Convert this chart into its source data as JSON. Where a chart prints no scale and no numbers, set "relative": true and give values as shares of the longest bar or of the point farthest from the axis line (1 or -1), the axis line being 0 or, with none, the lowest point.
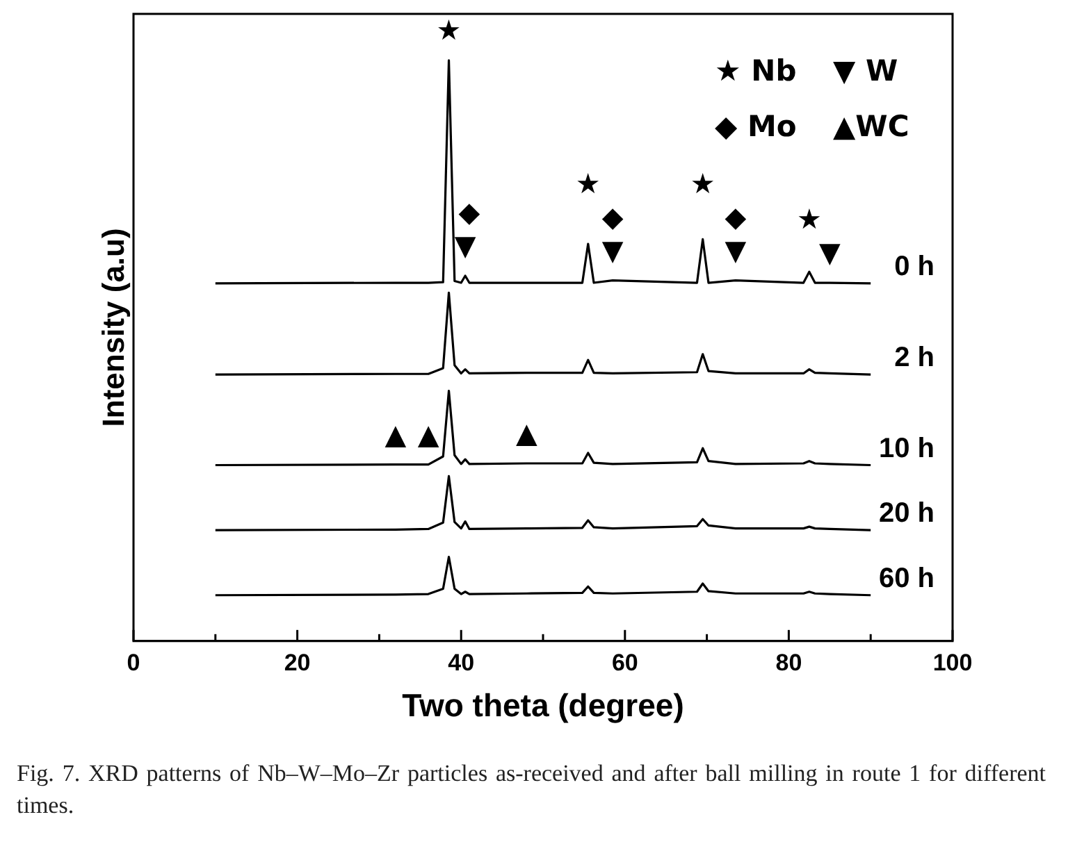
{
  "chart_data": {
    "type": "line",
    "relative": true,
    "xlabel": "Two theta (degree)",
    "ylabel": "Intensity (a.u)",
    "xlim": [
      0,
      100
    ],
    "xticks": [
      0,
      {
        "value": 10,
        "label": null
      },
      20,
      {
        "value": 30,
        "label": null
      },
      40,
      {
        "value": 50,
        "label": null
      },
      60,
      {
        "value": 70,
        "label": null
      },
      80,
      {
        "value": 90,
        "label": null
      },
      100
    ],
    "tick_labels": "x",
    "legend": false,
    "grid": false,
    "marker": "none",
    "line_style": "solid",
    "x": [
      10,
      32,
      36,
      37.8,
      38.5,
      39.2,
      40,
      40.5,
      41,
      48,
      54.8,
      55.5,
      56.2,
      58.5,
      68.8,
      69.5,
      70.2,
      73.5,
      81.8,
      82.5,
      83.2,
      85,
      90
    ],
    "series": [
      {
        "name": "0 h",
        "color": "#000000",
        "values": [
          0.616,
          0.617,
          0.617,
          0.618,
          1.0,
          0.62,
          0.617,
          0.629,
          0.617,
          0.617,
          0.617,
          0.684,
          0.617,
          0.621,
          0.617,
          0.692,
          0.617,
          0.621,
          0.617,
          0.636,
          0.617,
          0.617,
          0.616
        ]
      },
      {
        "name": "2 h",
        "color": "#000000",
        "values": [
          0.459,
          0.46,
          0.46,
          0.47,
          0.6,
          0.475,
          0.461,
          0.468,
          0.461,
          0.462,
          0.462,
          0.484,
          0.462,
          0.461,
          0.463,
          0.494,
          0.465,
          0.461,
          0.461,
          0.468,
          0.462,
          0.461,
          0.459
        ]
      },
      {
        "name": "10 h",
        "color": "#000000",
        "values": [
          0.303,
          0.304,
          0.304,
          0.318,
          0.431,
          0.32,
          0.305,
          0.313,
          0.305,
          0.306,
          0.306,
          0.324,
          0.307,
          0.305,
          0.308,
          0.332,
          0.31,
          0.305,
          0.306,
          0.31,
          0.306,
          0.305,
          0.303
        ]
      },
      {
        "name": "20 h",
        "color": "#000000",
        "values": [
          0.191,
          0.192,
          0.193,
          0.204,
          0.284,
          0.205,
          0.194,
          0.206,
          0.193,
          0.194,
          0.195,
          0.208,
          0.196,
          0.194,
          0.198,
          0.21,
          0.199,
          0.194,
          0.194,
          0.197,
          0.194,
          0.193,
          0.191
        ]
      },
      {
        "name": "60 h",
        "color": "#000000",
        "values": [
          0.079,
          0.08,
          0.081,
          0.09,
          0.145,
          0.09,
          0.081,
          0.085,
          0.081,
          0.082,
          0.083,
          0.094,
          0.083,
          0.082,
          0.085,
          0.099,
          0.086,
          0.082,
          0.082,
          0.085,
          0.082,
          0.081,
          0.079
        ]
      }
    ],
    "annotations": [
      {
        "text": "▼",
        "x": 40.5,
        "y": 0.629
      },
      {
        "text": "▼",
        "x": 58.5,
        "y": 0.621
      },
      {
        "text": "▼",
        "x": 73.5,
        "y": 0.621
      },
      {
        "text": "▼",
        "x": 85,
        "y": 0.617
      },
      {
        "text": "◆",
        "x": 41,
        "y": 0.617
      },
      {
        "text": "◆",
        "x": 58.5,
        "y": 0.621
      },
      {
        "text": "◆",
        "x": 73.5,
        "y": 0.621
      },
      {
        "text": "★",
        "x": 38.5,
        "y": 1.0
      },
      {
        "text": "★",
        "x": 55.5,
        "y": 0.684
      },
      {
        "text": "★",
        "x": 69.5,
        "y": 0.692
      },
      {
        "text": "★",
        "x": 82.5,
        "y": 0.636
      },
      {
        "text": "▲",
        "x": 32,
        "y": 0.304
      },
      {
        "text": "▲",
        "x": 36,
        "y": 0.304
      },
      {
        "text": "▲",
        "x": 48,
        "y": 0.306
      },
      "★ Nb",
      "▼ W",
      "◆ Mo",
      "▲WC",
      "Fig. 7. XRD patterns of Nb–W–Mo–Zr particles as-received and after ball milling in route 1 for different times."
    ]
  }
}
